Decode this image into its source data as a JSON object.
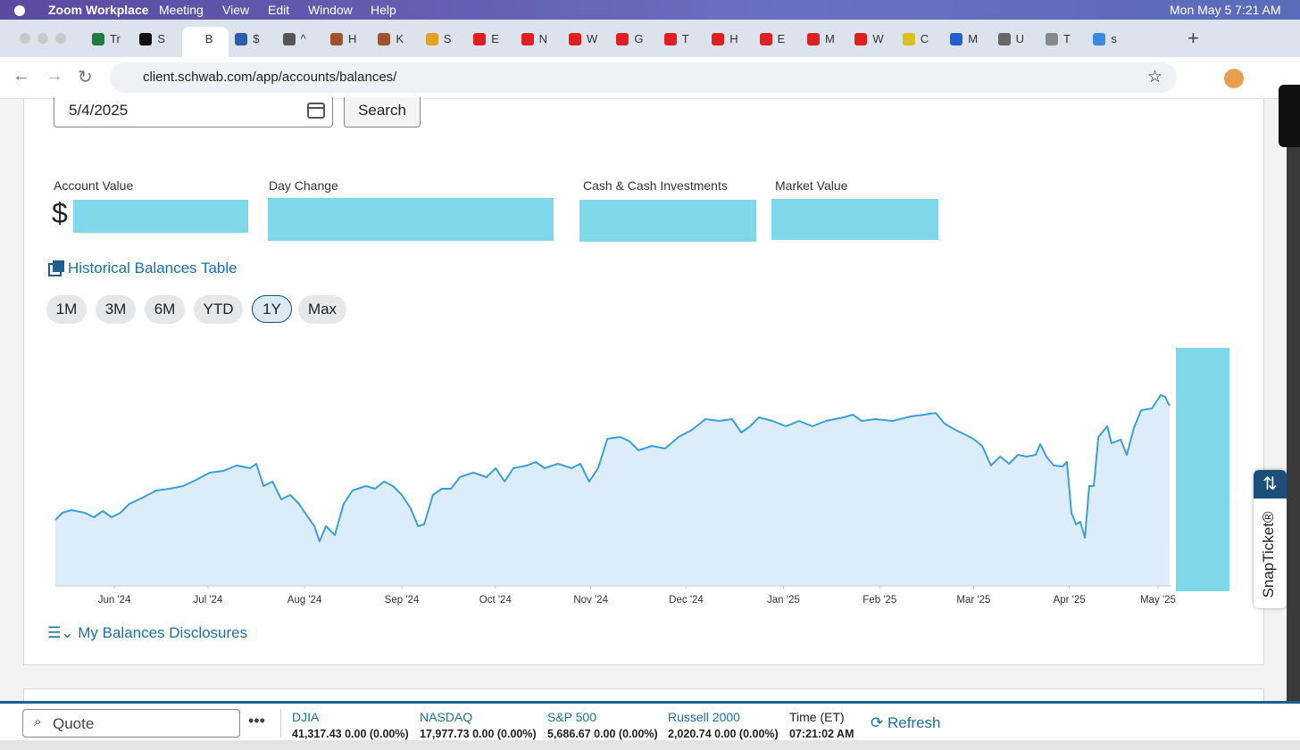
{
  "menu_bar": {
    "app": "Zoom Workplace",
    "items": [
      "Meeting",
      "View",
      "Edit",
      "Window",
      "Help"
    ],
    "clock": "Mon May 5  7:21 AM"
  },
  "browser": {
    "tabs": [
      "Tr",
      "S",
      "B",
      "$",
      "^",
      "H",
      "K",
      "S",
      "E",
      "N",
      "W",
      "G",
      "T",
      "H",
      "E",
      "M",
      "W",
      "C",
      "M",
      "U",
      "T",
      "s"
    ],
    "active_tab": 2,
    "url": "client.schwab.com/app/accounts/balances/"
  },
  "page": {
    "date": "5/4/2025",
    "search": "Search",
    "summary": [
      "Account Value",
      "Day Change",
      "Cash & Cash Investments",
      "Market Value"
    ],
    "account_value_prefix": "$",
    "historical_link": "Historical Balances Table",
    "ranges": [
      "1M",
      "3M",
      "6M",
      "YTD",
      "1Y",
      "Max"
    ],
    "selected_range": 4,
    "disclosures": "My Balances Disclosures",
    "snapticket": "SnapTicket®"
  },
  "chart_data": {
    "type": "area",
    "color": "#3a9fdc",
    "fill": "#dcedf9",
    "x": [
      0,
      2.3,
      5.3,
      9.6,
      12.6,
      15.5,
      18.4,
      21.3,
      24.2,
      28.6,
      33,
      37.4,
      41.8,
      46.1,
      50.5,
      54.9,
      59.3,
      63.7,
      65.7,
      68.1,
      71,
      73.9,
      76.8,
      79.7,
      82.6,
      84.7,
      86.4,
      88.5,
      91.4,
      94.3,
      97.2,
      101.6,
      104.5,
      107.5,
      110.4,
      113.3,
      116.2,
      118.6,
      120.6,
      123.5,
      126.4,
      129.4,
      132.3,
      136.7,
      141,
      144,
      146.9,
      149.8,
      154.2,
      157.1,
      160,
      164.4,
      168.8,
      171.7,
      174.6,
      177.5,
      180.5,
      184.8,
      187.8,
      190.7,
      195.1,
      199.4,
      203.8,
      208.2,
      212.6,
      217,
      221.3,
      224.3,
      227.2,
      230.1,
      234.5,
      238.9,
      243.2,
      247.6,
      252,
      257.8,
      260.8,
      263.7,
      268.1,
      273.9,
      279.7,
      284.1,
      287.9,
      290.8,
      294.3,
      297.3,
      300.2,
      303.1,
      306,
      309,
      311.9,
      314.8,
      317.7,
      320.6,
      322.1,
      324.1,
      326.5,
      329.4,
      330.8,
      332.3,
      333.8,
      335.2,
      336.7,
      338.1,
      339.6,
      341.1,
      344,
      345.4,
      348.4,
      350.4,
      352.7,
      355.1,
      358.6,
      361.5,
      362.9,
      364.4
    ],
    "values": [
      74,
      82,
      85,
      82,
      77,
      84,
      77,
      82,
      92,
      99,
      107,
      109,
      112,
      119,
      127,
      129,
      135,
      132,
      137,
      112,
      117,
      97,
      102,
      92,
      77,
      67,
      50,
      67,
      57,
      92,
      107,
      112,
      109,
      117,
      112,
      102,
      87,
      67,
      69,
      102,
      109,
      109,
      122,
      127,
      122,
      132,
      117,
      132,
      135,
      139,
      132,
      137,
      132,
      137,
      117,
      132,
      165,
      167,
      162,
      152,
      157,
      154,
      167,
      175,
      187,
      185,
      187,
      172,
      179,
      189,
      185,
      179,
      185,
      179,
      185,
      189,
      192,
      185,
      187,
      185,
      190,
      192,
      194,
      182,
      175,
      170,
      165,
      157,
      135,
      145,
      137,
      147,
      145,
      147,
      159,
      145,
      135,
      134,
      139,
      82,
      69,
      72,
      54,
      112,
      112,
      167,
      179,
      160,
      164,
      147,
      177,
      197,
      199,
      214,
      212,
      202
    ],
    "xlim": [
      0,
      365
    ],
    "ylim": [
      0,
      260
    ],
    "xticks": [
      {
        "value": 19.3,
        "label": "Jun '24"
      },
      {
        "value": 49.9,
        "label": "Jul '24"
      },
      {
        "value": 81.5,
        "label": "Aug '24"
      },
      {
        "value": 113.3,
        "label": "Sep '24"
      },
      {
        "value": 143.9,
        "label": "Oct '24"
      },
      {
        "value": 175.1,
        "label": "Nov '24"
      },
      {
        "value": 206.3,
        "label": "Dec '24"
      },
      {
        "value": 238.1,
        "label": "Jan '25"
      },
      {
        "value": 269.6,
        "label": "Feb '25"
      },
      {
        "value": 300.3,
        "label": "Mar '25"
      },
      {
        "value": 331.6,
        "label": "Apr '25"
      },
      {
        "value": 360.6,
        "label": "May '25"
      }
    ]
  },
  "ticker": {
    "quote_placeholder": "Quote",
    "indices": [
      {
        "name": "DJIA",
        "value": "41,317.43 0.00 (0.00%)"
      },
      {
        "name": "NASDAQ",
        "value": "17,977.73 0.00 (0.00%)"
      },
      {
        "name": "S&P 500",
        "value": "5,686.67 0.00 (0.00%)"
      },
      {
        "name": "Russell 2000",
        "value": "2,020.74 0.00 (0.00%)"
      }
    ],
    "time_label": "Time (ET)",
    "time": "07:21:02 AM",
    "refresh": "Refresh"
  }
}
